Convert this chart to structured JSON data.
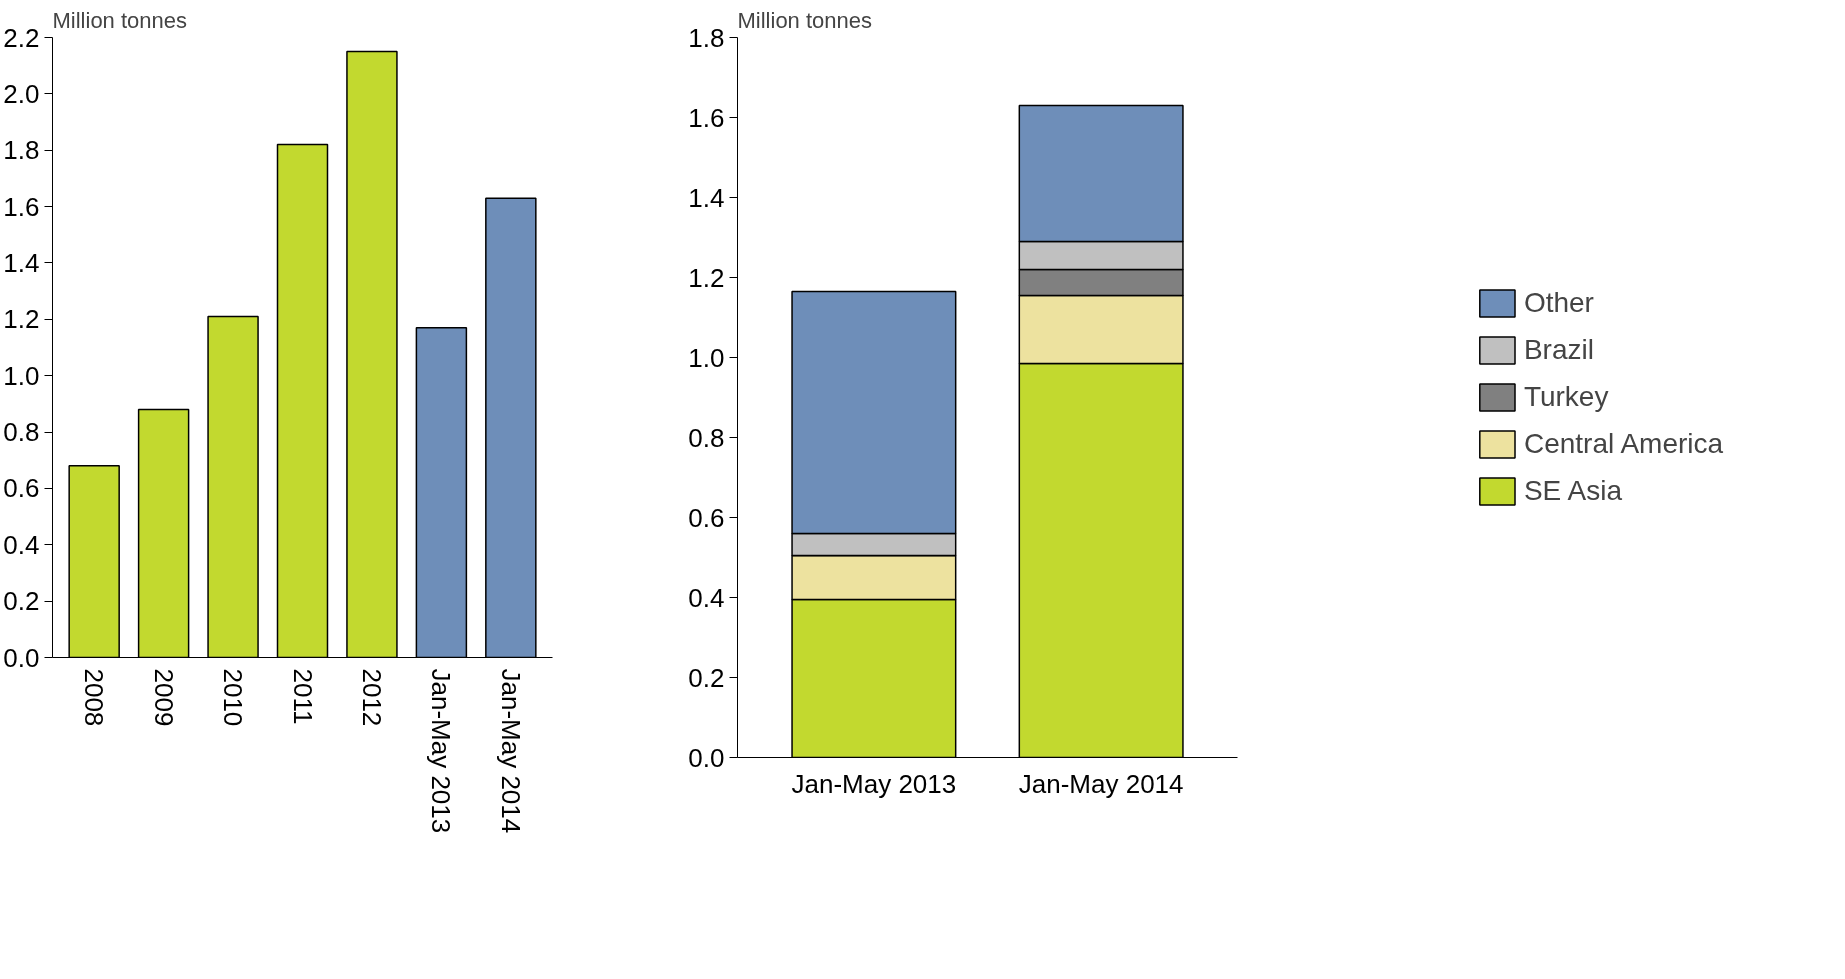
{
  "chart_data": [
    {
      "type": "bar",
      "ylabel": "Million tonnes",
      "categories": [
        "2008",
        "2009",
        "2010",
        "2011",
        "2012",
        "Jan-May 2013",
        "Jan-May 2014"
      ],
      "values": [
        0.68,
        0.88,
        1.21,
        1.82,
        2.15,
        1.17,
        1.63
      ],
      "colors": [
        "#c2d92f",
        "#c2d92f",
        "#c2d92f",
        "#c2d92f",
        "#c2d92f",
        "#6e8eb9",
        "#6e8eb9"
      ],
      "ylim": [
        0,
        2.2
      ],
      "yticks": [
        {
          "value": 0,
          "label": "0.0"
        },
        0.2,
        0.4,
        0.6,
        0.8,
        {
          "value": 1,
          "label": "1.0"
        },
        1.2,
        1.4,
        1.6,
        1.8,
        {
          "value": 2,
          "label": "2.0"
        },
        2.2
      ],
      "grid": false
    },
    {
      "type": "bar",
      "ylabel": "Million tonnes",
      "categories": [
        "Jan-May 2013",
        "Jan-May 2014"
      ],
      "stacked": true,
      "series": [
        {
          "name": "SE Asia",
          "color": "#c2d92f",
          "values": [
            0.395,
            0.985
          ]
        },
        {
          "name": "Central America",
          "color": "#ede29f",
          "values": [
            0.11,
            0.17
          ]
        },
        {
          "name": "Turkey",
          "color": "#808080",
          "values": [
            0,
            0.065
          ]
        },
        {
          "name": "Brazil",
          "color": "#c0c0c0",
          "values": [
            0.055,
            0.07
          ]
        },
        {
          "name": "Other",
          "color": "#6e8eb9",
          "values": [
            0.605,
            0.34
          ]
        }
      ],
      "ylim": [
        0,
        1.8
      ],
      "yticks": [
        {
          "value": 0,
          "label": "0.0"
        },
        0.2,
        0.4,
        0.6,
        0.8,
        {
          "value": 1,
          "label": "1.0"
        },
        1.2,
        1.4,
        1.6,
        1.8
      ],
      "grid": false,
      "legend": "right"
    }
  ]
}
